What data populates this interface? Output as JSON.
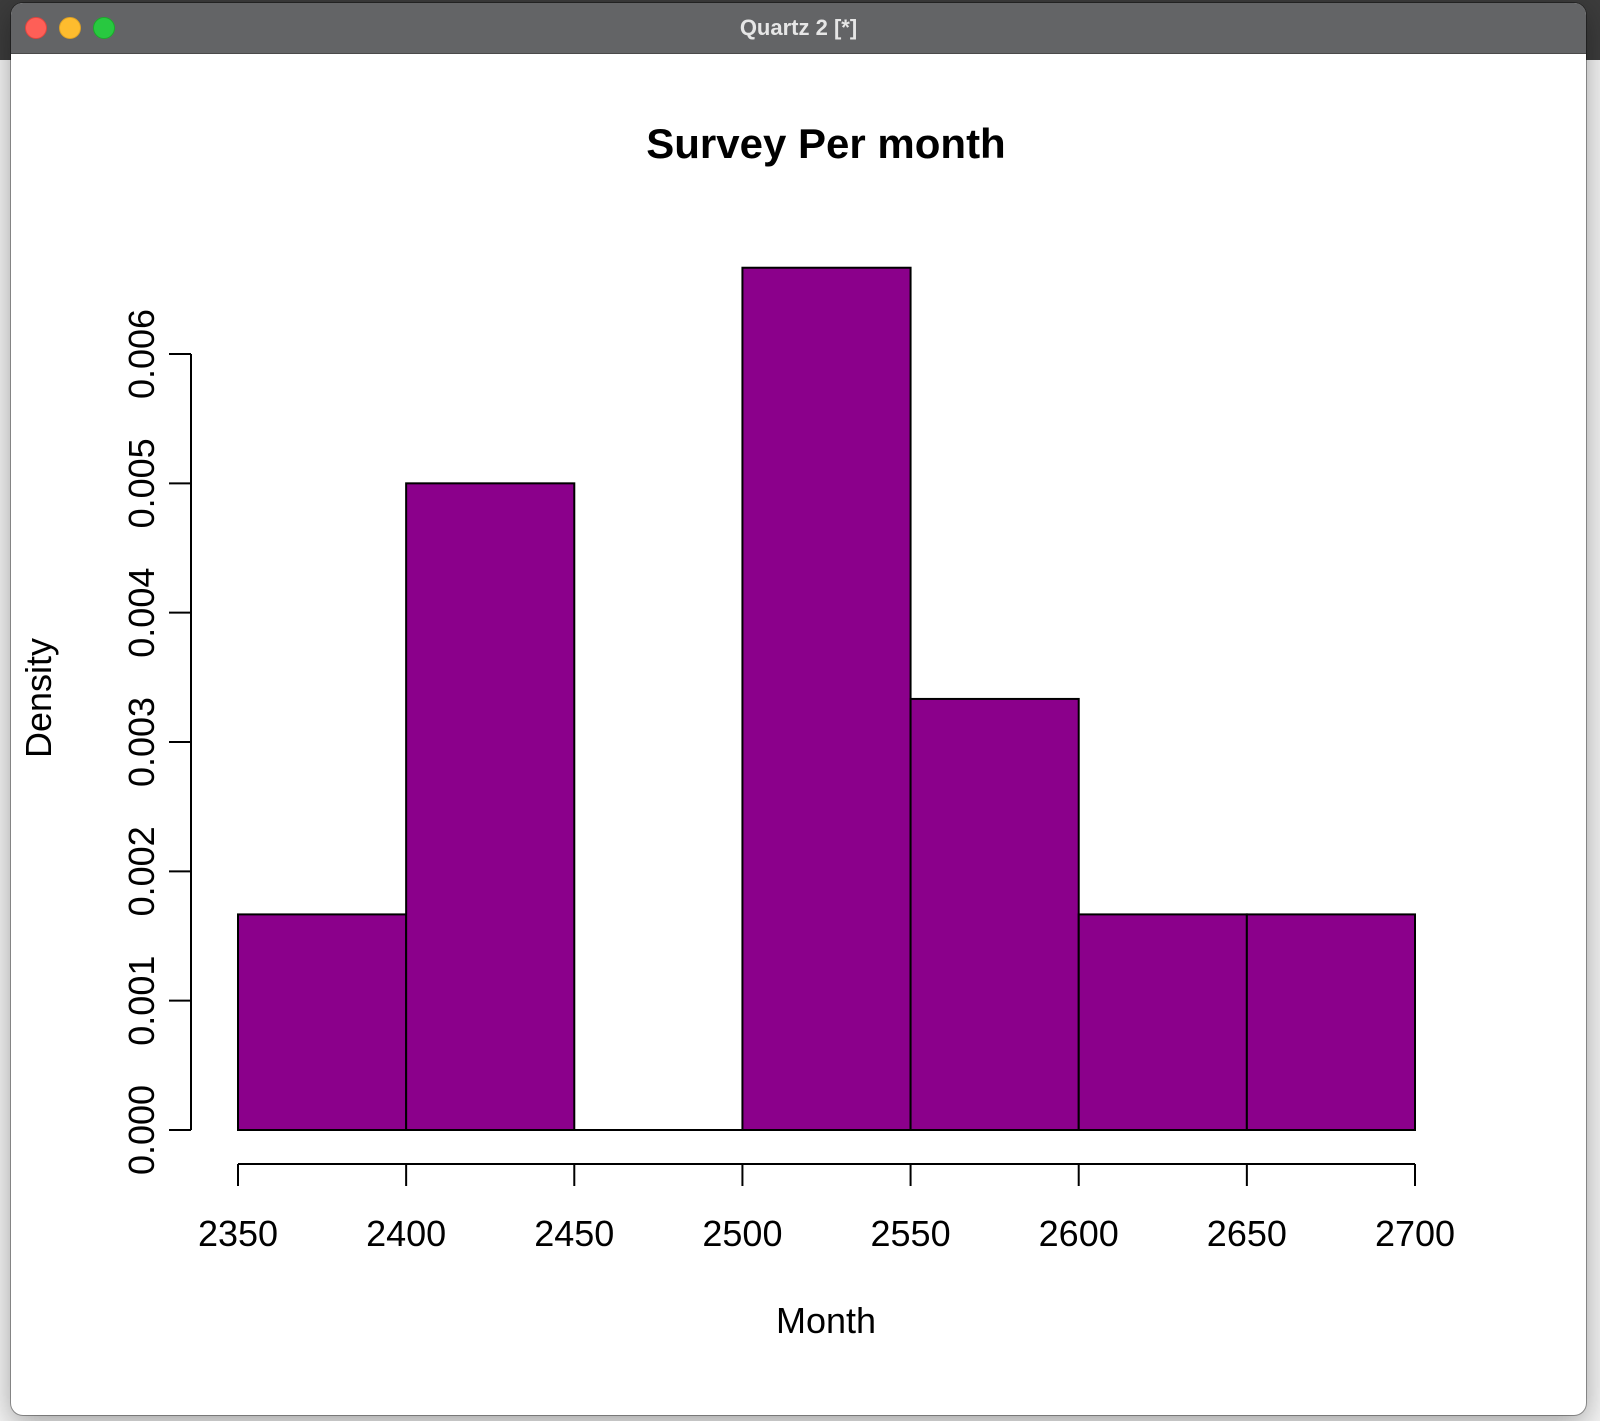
{
  "window": {
    "title": "Quartz 2 [*]"
  },
  "colors": {
    "bar_fill": "#8b008b",
    "bar_stroke": "#000000"
  },
  "chart_data": {
    "type": "bar",
    "title": "Survey Per month",
    "xlabel": "Month",
    "ylabel": "Density",
    "bins": [
      {
        "start": 2350,
        "end": 2400,
        "density": 0.001667
      },
      {
        "start": 2400,
        "end": 2450,
        "density": 0.005
      },
      {
        "start": 2450,
        "end": 2500,
        "density": 0.0
      },
      {
        "start": 2500,
        "end": 2550,
        "density": 0.006667
      },
      {
        "start": 2550,
        "end": 2600,
        "density": 0.003333
      },
      {
        "start": 2600,
        "end": 2650,
        "density": 0.001667
      },
      {
        "start": 2650,
        "end": 2700,
        "density": 0.001667
      }
    ],
    "x_ticks": [
      "2350",
      "2400",
      "2450",
      "2500",
      "2550",
      "2600",
      "2650",
      "2700"
    ],
    "y_ticks": [
      "0.000",
      "0.001",
      "0.002",
      "0.003",
      "0.004",
      "0.005",
      "0.006"
    ],
    "xlim": [
      2350,
      2700
    ],
    "ylim": [
      0,
      0.006
    ],
    "grid": false,
    "legend": "none"
  }
}
